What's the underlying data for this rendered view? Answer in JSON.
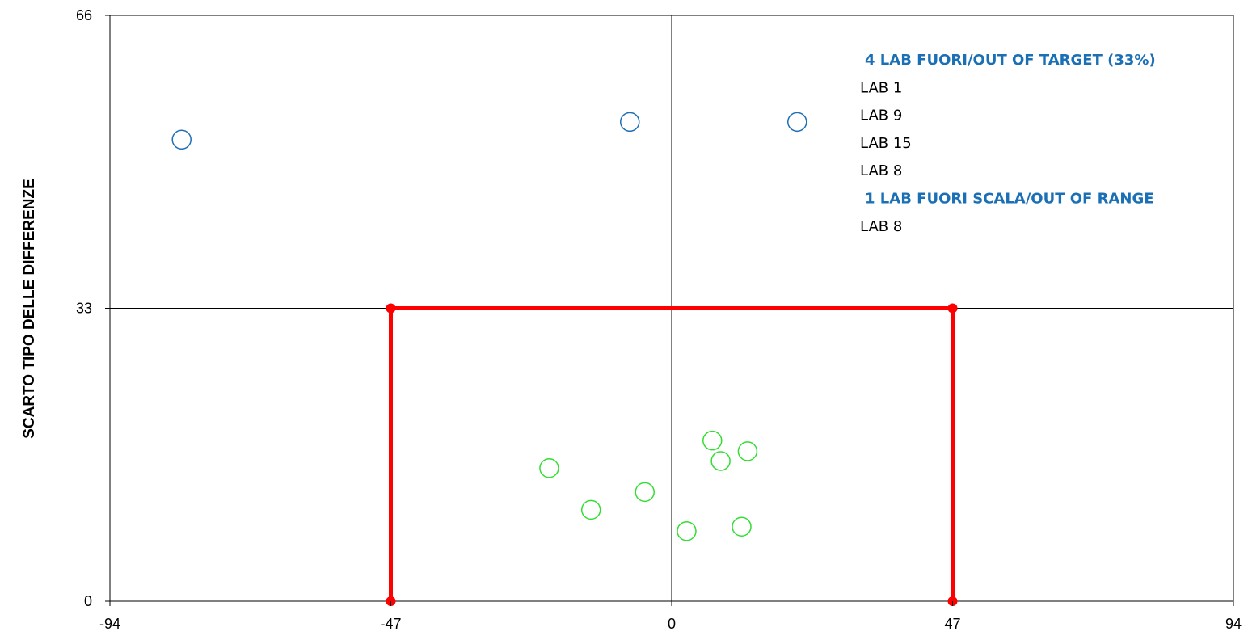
{
  "chart_data": {
    "type": "scatter",
    "title": "",
    "xlabel": "",
    "ylabel": "SCARTO TIPO DELLE DIFFERENZE",
    "xlim": [
      -94,
      94
    ],
    "ylim": [
      0,
      66
    ],
    "x_ticks": [
      "-94",
      "-47",
      "0",
      "47",
      "94"
    ],
    "y_ticks": [
      "0",
      "33",
      "66"
    ],
    "grid": "crosshair at x=0 and y=33",
    "series": [
      {
        "color": "#1f6fb5",
        "marker": "open-circle",
        "points": [
          {
            "x": -82,
            "y": 52
          },
          {
            "x": -7,
            "y": 54
          },
          {
            "x": 21,
            "y": 54
          }
        ]
      },
      {
        "color": "#33dd33",
        "marker": "open-circle",
        "points": [
          {
            "x": -20.5,
            "y": 15
          },
          {
            "x": -13.5,
            "y": 10.3
          },
          {
            "x": -4.5,
            "y": 12.3
          },
          {
            "x": 2.5,
            "y": 7.9
          },
          {
            "x": 6.8,
            "y": 18.1
          },
          {
            "x": 8.2,
            "y": 15.8
          },
          {
            "x": 11.7,
            "y": 8.4
          },
          {
            "x": 12.7,
            "y": 16.9
          }
        ]
      }
    ],
    "target_box": {
      "color": "#ff0000",
      "x_min": -47,
      "x_max": 47,
      "y_max": 33
    },
    "annotations": [
      {
        "text": "4 LAB FUORI/OUT OF TARGET (33%)",
        "style": "heading",
        "color": "#1a6fb5"
      },
      {
        "text": "LAB 1",
        "style": "item"
      },
      {
        "text": "LAB 9",
        "style": "item"
      },
      {
        "text": "LAB 15",
        "style": "item"
      },
      {
        "text": "LAB 8",
        "style": "item"
      },
      {
        "text": "1 LAB FUORI SCALA/OUT OF RANGE",
        "style": "heading",
        "color": "#1a6fb5"
      },
      {
        "text": "LAB 8",
        "style": "item"
      }
    ]
  }
}
